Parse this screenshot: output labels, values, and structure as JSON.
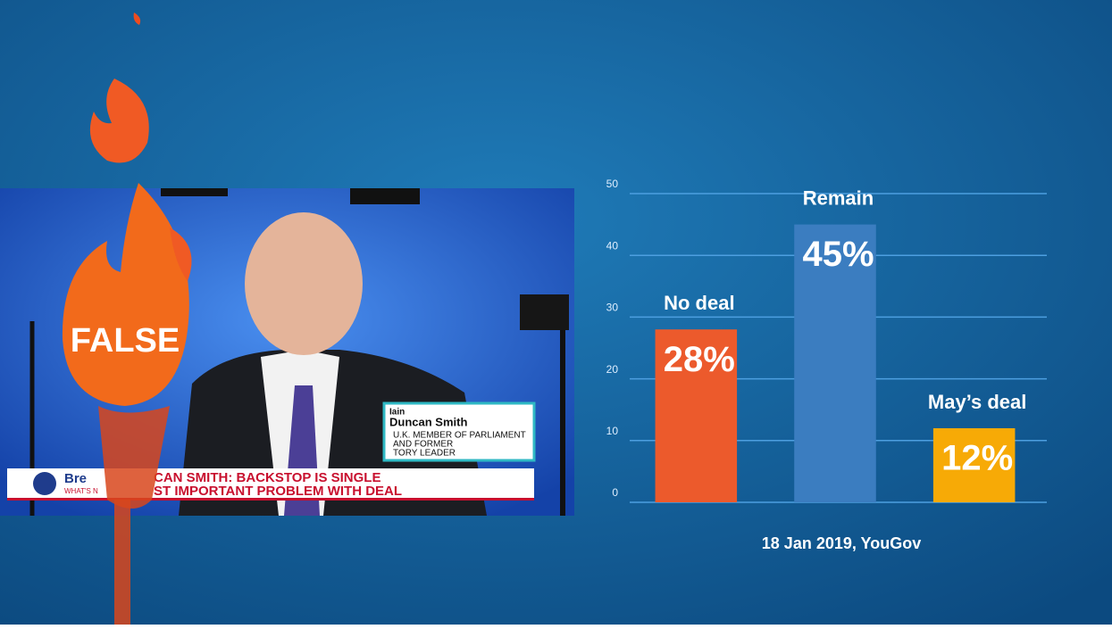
{
  "chart_data": {
    "type": "bar",
    "categories": [
      "No deal",
      "Remain",
      "May’s deal"
    ],
    "values": [
      28,
      45,
      12
    ],
    "value_labels": [
      "28%",
      "45%",
      "12%"
    ],
    "colors": [
      "#ec5a2c",
      "#3b7dc0",
      "#f7aa06"
    ],
    "ylim": [
      0,
      50
    ],
    "yticks": [
      0,
      10,
      20,
      30,
      40,
      50
    ],
    "grid": true,
    "source": "18 Jan 2019, YouGov"
  },
  "video": {
    "verdict": "FALSE",
    "name_first": "Iain",
    "name_last": "Duncan Smith",
    "role_lines": [
      "U.K. MEMBER OF PARLIAMENT",
      "AND FORMER",
      "TORY LEADER"
    ],
    "show": "Bre",
    "show_sub": "WHAT'S N",
    "headline_lines": [
      "CAN SMITH: BACKSTOP IS SINGLE",
      "ST IMPORTANT PROBLEM WITH DEAL"
    ]
  }
}
